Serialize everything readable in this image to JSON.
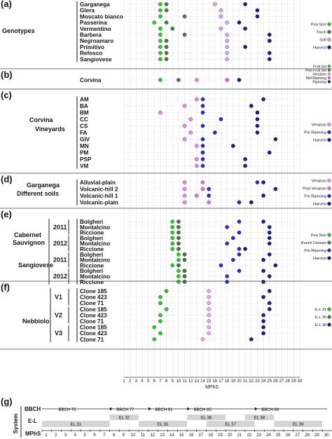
{
  "chart_data": {
    "type": "scatter",
    "xlabel": "MPhS",
    "xlim": [
      1,
      30
    ],
    "x_ticks": [
      "1",
      "2",
      "3",
      "4",
      "5",
      "6",
      "7",
      "8",
      "9",
      "10",
      "11",
      "12",
      "13",
      "14",
      "15",
      "16",
      "17",
      "18",
      "19",
      "20",
      "21",
      "22",
      "23",
      "24",
      "25",
      "26",
      "27",
      "28",
      "29",
      "30"
    ],
    "colors": {
      "pea_size": "#2fc42f",
      "touch": "#4a7a4a",
      "soft": "#c8a8e8",
      "harvest": "#1a1a8c",
      "fruit_set": "#2fc42f",
      "post_fruit_set": "#4a7a4a",
      "mid_ripening": "#e070e0",
      "veraison": "#e890e8",
      "post_veraison": "#e070e0",
      "pre_ripening": "#2a2ad0",
      "bunch_closure": "#4a7a4a",
      "el31": "#2fc42f",
      "el35": "#4a7a4a",
      "el36": "#1a1a8c"
    },
    "panels": [
      {
        "tag": "(a)",
        "group_labels": [
          "Genotypes"
        ],
        "rows": [
          "Garganega",
          "Glera",
          "Moscato bianco",
          "Passerina",
          "Vermentino",
          "Barbera",
          "Negroamaro",
          "Primitivo",
          "Refosco",
          "Sangiovese"
        ],
        "legend": [
          "Pea Size",
          "Touch",
          "Soft",
          "Harvest"
        ],
        "series": [
          {
            "legend": "Pea Size",
            "points": [
              [
                7,
                0
              ],
              [
                7,
                1
              ],
              [
                7,
                2
              ],
              [
                6,
                3
              ],
              [
                7,
                4
              ],
              [
                7,
                5
              ],
              [
                7,
                6
              ],
              [
                7,
                7
              ],
              [
                7,
                8
              ],
              [
                7,
                9
              ]
            ]
          },
          {
            "legend": "Touch",
            "points": [
              [
                8,
                0
              ],
              [
                8,
                1
              ],
              [
                11,
                2
              ],
              [
                8,
                3
              ],
              [
                9,
                4
              ],
              [
                11,
                5
              ],
              [
                8,
                6
              ],
              [
                8,
                7
              ],
              [
                8,
                8
              ],
              [
                8,
                9
              ]
            ]
          },
          {
            "legend": "Soft",
            "points": [
              [
                16,
                0
              ],
              [
                17,
                1
              ],
              [
                17,
                2
              ],
              [
                18,
                3
              ],
              [
                17,
                4
              ],
              [
                18,
                5
              ],
              [
                18,
                6
              ],
              [
                18,
                7
              ],
              [
                18,
                8
              ],
              [
                18,
                9
              ]
            ]
          },
          {
            "legend": "Harvest",
            "points": [
              [
                21,
                0
              ],
              [
                23,
                1
              ],
              [
                23,
                2
              ],
              [
                20,
                3
              ],
              [
                21,
                4
              ],
              [
                25,
                5
              ],
              [
                25,
                6
              ],
              [
                21,
                7
              ],
              [
                25,
                8
              ],
              [
                25,
                9
              ]
            ]
          }
        ]
      },
      {
        "tag": "(b)",
        "group_labels": [],
        "rows": [
          "Corvina"
        ],
        "legend": [
          "Fruit Set",
          "Post Fruit Set",
          "Veraison",
          "Mid Ripening",
          "Ripening"
        ],
        "series": [
          {
            "legend": "Fruit Set",
            "points": [
              [
                7,
                0
              ]
            ]
          },
          {
            "legend": "Post Fruit Set",
            "points": [
              [
                10,
                0
              ]
            ]
          },
          {
            "legend": "Veraison",
            "points": [
              [
                13,
                0
              ]
            ]
          },
          {
            "legend": "Mid Ripening",
            "points": [
              [
                18,
                0
              ]
            ]
          },
          {
            "legend": "Ripening",
            "points": [
              [
                20,
                0
              ]
            ]
          }
        ]
      },
      {
        "tag": "(c)",
        "group_labels": [
          "Corvina",
          "Vineyards"
        ],
        "rows": [
          "AM",
          "BA",
          "BM",
          "CC",
          "CS",
          "FA",
          "GIV",
          "MN",
          "PM",
          "PSP",
          "VM"
        ],
        "legend": [
          "Veraison",
          "Pre Ripening",
          "Harvest"
        ],
        "series": [
          {
            "legend": "Veraison",
            "points": [
              [
                13,
                0
              ],
              [
                11,
                1
              ],
              [
                7,
                2
              ],
              [
                12,
                3
              ],
              [
                11,
                4
              ],
              [
                12,
                5
              ],
              [
                11,
                6
              ],
              [
                13,
                7
              ],
              [
                14,
                8
              ],
              [
                13,
                9
              ],
              [
                13,
                10
              ]
            ]
          },
          {
            "legend": "Pre Ripening",
            "points": [
              [
                14,
                0
              ],
              [
                14,
                1
              ],
              [
                14,
                2
              ],
              [
                17,
                3
              ],
              [
                14,
                4
              ],
              [
                16,
                5
              ],
              [
                14,
                6
              ],
              [
                14,
                7
              ],
              [
                14,
                8
              ],
              [
                14,
                9
              ],
              [
                14,
                10
              ]
            ]
          },
          {
            "legend": "Harvest",
            "points": [
              [
                24,
                0
              ],
              [
                22,
                1
              ],
              [
                23,
                2
              ],
              [
                23,
                3
              ],
              [
                23,
                4
              ],
              [
                23,
                5
              ],
              [
                26,
                6
              ],
              [
                19,
                7
              ],
              [
                25,
                8
              ],
              [
                21,
                9
              ],
              [
                21,
                10
              ]
            ]
          }
        ]
      },
      {
        "tag": "(d)",
        "group_labels": [
          "Garganega",
          "Different soils"
        ],
        "rows": [
          "Alluvial-plain",
          "Volcanic-hill 2",
          "Volcanic-hill 1",
          "Volcanic-plain"
        ],
        "legend": [
          "Veraison",
          "Post Veraison",
          "Pre Ripening",
          "Harvest"
        ],
        "series": [
          {
            "legend": "Veraison",
            "points": [
              [
                11,
                0
              ],
              [
                11,
                1
              ],
              [
                11,
                2
              ],
              [
                11,
                3
              ]
            ]
          },
          {
            "legend": "Post Veraison",
            "points": [
              [
                14,
                0
              ],
              [
                14,
                1
              ],
              [
                13,
                2
              ],
              [
                15,
                3
              ]
            ]
          },
          {
            "legend": "Pre Ripening",
            "points": [
              [
                23,
                0
              ],
              [
                15,
                1
              ],
              [
                15,
                2
              ],
              [
                20,
                3
              ]
            ]
          },
          {
            "legend": "Harvest",
            "points": [
              [
                24,
                0
              ],
              [
                26,
                1
              ],
              [
                24,
                2
              ],
              [
                22,
                3
              ]
            ]
          }
        ]
      },
      {
        "tag": "(e)",
        "group_labels": [
          "Cabernet",
          "Sauvignon",
          "Sangiovese"
        ],
        "years": [
          "2011",
          "2012",
          "2011",
          "2012"
        ],
        "rows": [
          "Bolgheri",
          "Montalcino",
          "Riccione",
          "Bolgheri",
          "Montalcino",
          "Riccione",
          "Bolgheri",
          "Montalcino",
          "Riccione",
          "Bolgheri",
          "Montalcino",
          "Riccione"
        ],
        "legend": [
          "Pea Size",
          "Bunch Closure",
          "Pre Ripening",
          "Harvest"
        ],
        "series": [
          {
            "legend": "Pea Size",
            "points": [
              [
                9,
                0
              ],
              [
                9,
                1
              ],
              [
                9,
                2
              ],
              [
                9,
                3
              ],
              [
                9,
                4
              ],
              [
                9,
                5
              ],
              [
                10,
                6
              ],
              [
                10,
                7
              ],
              [
                9,
                8
              ],
              [
                10,
                9
              ],
              [
                10,
                10
              ],
              [
                10,
                11
              ]
            ]
          },
          {
            "legend": "Bunch Closure",
            "points": [
              [
                10,
                0
              ],
              [
                10,
                1
              ],
              [
                10,
                2
              ],
              [
                10,
                3
              ],
              [
                10,
                4
              ],
              [
                10,
                5
              ],
              [
                11,
                6
              ],
              [
                11,
                7
              ],
              [
                10,
                8
              ],
              [
                11,
                9
              ],
              [
                11,
                10
              ],
              [
                11,
                11
              ]
            ]
          },
          {
            "legend": "Pre Ripening",
            "points": [
              [
                20,
                0
              ],
              [
                18,
                1
              ],
              [
                20,
                2
              ],
              [
                19,
                3
              ],
              [
                18,
                4
              ],
              [
                20,
                5
              ],
              [
                20,
                6
              ],
              [
                19,
                7
              ],
              [
                17,
                8
              ],
              [
                20,
                9
              ],
              [
                18,
                10
              ],
              [
                18,
                11
              ]
            ]
          },
          {
            "legend": "Harvest",
            "points": [
              [
                24,
                0
              ],
              [
                25,
                1
              ],
              [
                25,
                2
              ],
              [
                25,
                3
              ],
              [
                25,
                4
              ],
              [
                21,
                5
              ],
              [
                25,
                6
              ],
              [
                24,
                7
              ],
              [
                26,
                8
              ],
              [
                24,
                9
              ],
              [
                25,
                10
              ],
              [
                24,
                11
              ]
            ]
          }
        ]
      },
      {
        "tag": "(f)",
        "group_labels": [
          "Nebbiolo"
        ],
        "years": [
          "V1",
          "V2",
          "V3"
        ],
        "rows": [
          "Clone 185",
          "Clone 423",
          "Clone 71",
          "Clone 185",
          "Clone 423",
          "Clone 71",
          "Clone 185",
          "Clone 423",
          "Clone 71"
        ],
        "legend": [
          "E-L 31",
          "E-L 35",
          "E-L 38"
        ],
        "series": [
          {
            "legend": "E-L 31",
            "points": [
              [
                8,
                0
              ],
              [
                7,
                1
              ],
              [
                7,
                2
              ],
              [
                8,
                3
              ],
              [
                7,
                4
              ],
              [
                7,
                5
              ],
              [
                6,
                6
              ],
              [
                7,
                7
              ],
              [
                6,
                8
              ]
            ]
          },
          {
            "legend": "E-L 35",
            "points": [
              [
                15,
                0
              ],
              [
                15,
                1
              ],
              [
                15,
                2
              ],
              [
                15,
                3
              ],
              [
                15,
                4
              ],
              [
                15,
                5
              ],
              [
                15,
                6
              ],
              [
                15,
                7
              ],
              [
                14,
                8
              ]
            ]
          },
          {
            "legend": "E-L 38",
            "points": [
              [
                25,
                0
              ],
              [
                24,
                1
              ],
              [
                25,
                2
              ],
              [
                25,
                3
              ],
              [
                24,
                4
              ],
              [
                24,
                5
              ],
              [
                24,
                6
              ],
              [
                24,
                7
              ],
              [
                22,
                8
              ]
            ]
          }
        ]
      }
    ],
    "system": {
      "tag": "(g)",
      "axis_label": "System",
      "row_labels": [
        "BBCH",
        "E-L",
        "MPhS"
      ],
      "bbch_stages": [
        {
          "label": "BBCH 75",
          "start": 1,
          "end": 7
        },
        {
          "label": "BBCH 77",
          "start": 7,
          "end": 11
        },
        {
          "label": "BBCH 81",
          "start": 11,
          "end": 15
        },
        {
          "label": "BBCH 85",
          "start": 15,
          "end": 22
        },
        {
          "label": "BBCH 89",
          "start": 22,
          "end": 30
        }
      ],
      "el_top": [
        {
          "label": "EL 32",
          "start": 8,
          "end": 11
        },
        {
          "label": "EL 36",
          "start": 16,
          "end": 20
        },
        {
          "label": "EL 38",
          "start": 22,
          "end": 25
        }
      ],
      "el_bottom": [
        {
          "label": "EL 31",
          "start": 1,
          "end": 8
        },
        {
          "label": "EL 35",
          "start": 11,
          "end": 16
        },
        {
          "label": "EL 37",
          "start": 18,
          "end": 23
        },
        {
          "label": "EL 39",
          "start": 25,
          "end": 30
        }
      ],
      "mphs_ticks": [
        "1",
        "2",
        "3",
        "4",
        "5",
        "6",
        "7",
        "8",
        "9",
        "10",
        "11",
        "12",
        "13",
        "14",
        "15",
        "16",
        "17",
        "18",
        "19",
        "20",
        "21",
        "22",
        "23",
        "24",
        "25",
        "26",
        "27",
        "28",
        "29",
        "30"
      ]
    }
  }
}
